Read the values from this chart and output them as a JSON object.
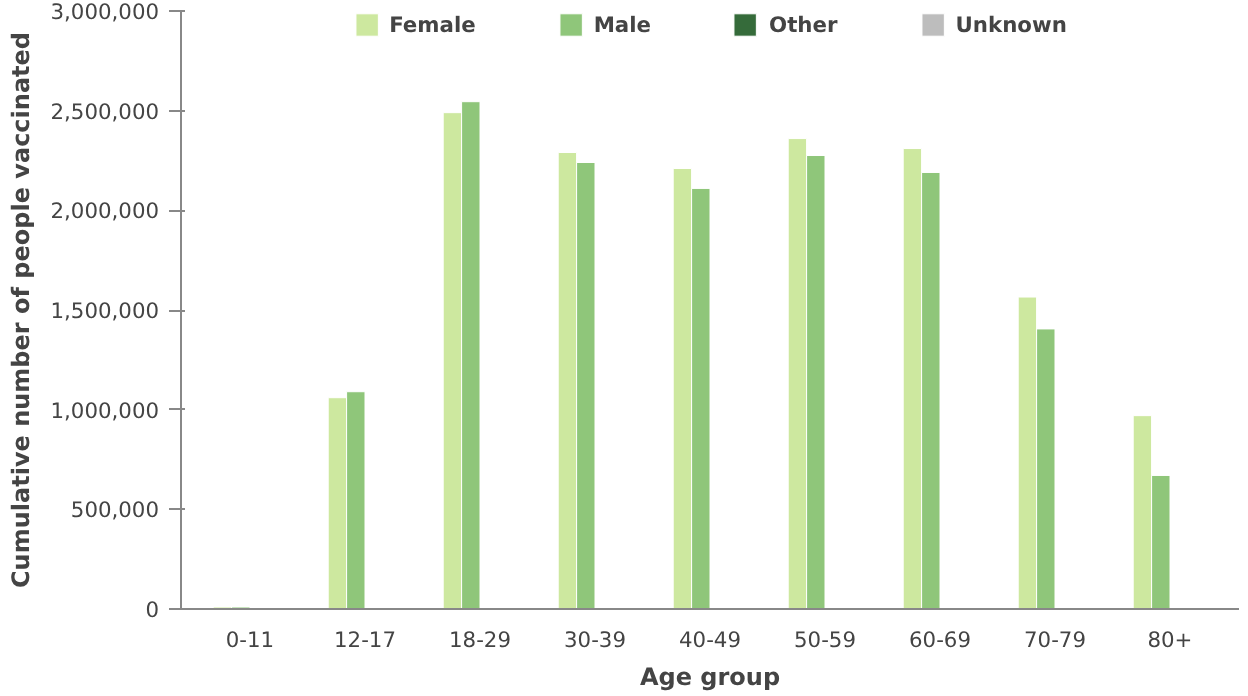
{
  "chart_data": {
    "type": "bar",
    "xlabel": "Age group",
    "ylabel": "Cumulative number of people vaccinated",
    "categories": [
      "0-11",
      "12-17",
      "18-29",
      "30-39",
      "40-49",
      "50-59",
      "60-69",
      "70-79",
      "80+"
    ],
    "series": [
      {
        "name": "Female",
        "color": "#cde89f",
        "values": [
          10000,
          1060000,
          2490000,
          2290000,
          2210000,
          2360000,
          2310000,
          1565000,
          970000
        ]
      },
      {
        "name": "Male",
        "color": "#8fc67a",
        "values": [
          10000,
          1090000,
          2545000,
          2240000,
          2110000,
          2275000,
          2190000,
          1405000,
          670000
        ]
      },
      {
        "name": "Other",
        "color": "#356b3a",
        "values": [
          5000,
          5000,
          5000,
          5000,
          5000,
          5000,
          5000,
          5000,
          5000
        ]
      },
      {
        "name": "Unknown",
        "color": "#bdbdbd",
        "values": [
          2000,
          2000,
          2000,
          2000,
          2000,
          2000,
          2000,
          2000,
          2000
        ]
      }
    ],
    "ylim": [
      0,
      3000000
    ],
    "yticks": [
      {
        "value": 0,
        "label": "0"
      },
      {
        "value": 500000,
        "label": "500,000"
      },
      {
        "value": 1000000,
        "label": "1,000,000"
      },
      {
        "value": 1500000,
        "label": "1,500,000"
      },
      {
        "value": 2000000,
        "label": "2,000,000"
      },
      {
        "value": 2500000,
        "label": "2,500,000"
      },
      {
        "value": 3000000,
        "label": "3,000,000"
      }
    ],
    "grid": false,
    "legend": "top"
  }
}
